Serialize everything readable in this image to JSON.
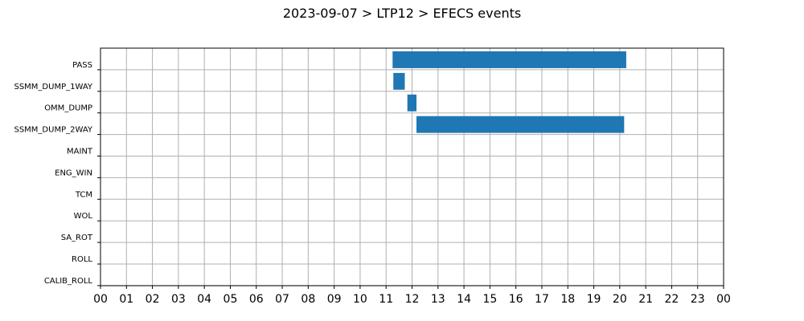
{
  "chart_data": {
    "type": "bar",
    "orientation": "horizontal-timeline",
    "title": "2023-09-07 > LTP12 > EFECS events",
    "xlabel": "",
    "ylabel": "",
    "grid": true,
    "bar_color": "#1f77b4",
    "grid_color": "#b0b0b0",
    "categories": [
      "PASS",
      "SSMM_DUMP_1WAY",
      "OMM_DUMP",
      "SSMM_DUMP_2WAY",
      "MAINT",
      "ENG_WIN",
      "TCM",
      "WOL",
      "SA_ROT",
      "ROLL",
      "CALIB_ROLL"
    ],
    "xlim": [
      0,
      24
    ],
    "x_tick_labels": [
      "00",
      "01",
      "02",
      "03",
      "04",
      "05",
      "06",
      "07",
      "08",
      "09",
      "10",
      "11",
      "12",
      "13",
      "14",
      "15",
      "16",
      "17",
      "18",
      "19",
      "20",
      "21",
      "22",
      "23",
      "00"
    ],
    "events": [
      {
        "category": "PASS",
        "start": 11.25,
        "end": 20.25
      },
      {
        "category": "SSMM_DUMP_1WAY",
        "start": 11.28,
        "end": 11.72
      },
      {
        "category": "OMM_DUMP",
        "start": 11.82,
        "end": 12.17
      },
      {
        "category": "SSMM_DUMP_2WAY",
        "start": 12.17,
        "end": 20.17
      }
    ]
  }
}
